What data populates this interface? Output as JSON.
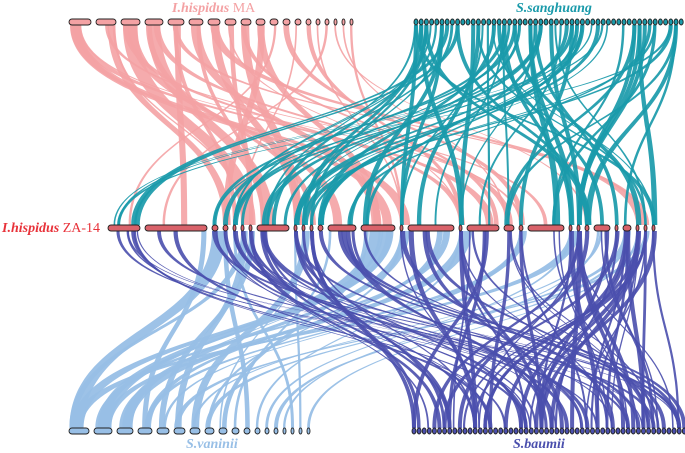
{
  "labels": {
    "ih_ma_species": "I.hispidus",
    "ih_ma_strain": " MA",
    "sanghuang": "S.sanghuang",
    "ih_za_species": "I.hispidus",
    "ih_za_strain": " ZA-14",
    "vaninii": "S.vaninii",
    "baumii": "S.baumii"
  },
  "colors": {
    "ih_ma": "#f4a2a4",
    "sanghuang": "#1a9aaa",
    "ih_za_label": "#e8323a",
    "ih_za_chrom": "#d9626a",
    "vaninii": "#98bfe6",
    "baumii": "#4a4fad",
    "outline": "#222222"
  }
}
